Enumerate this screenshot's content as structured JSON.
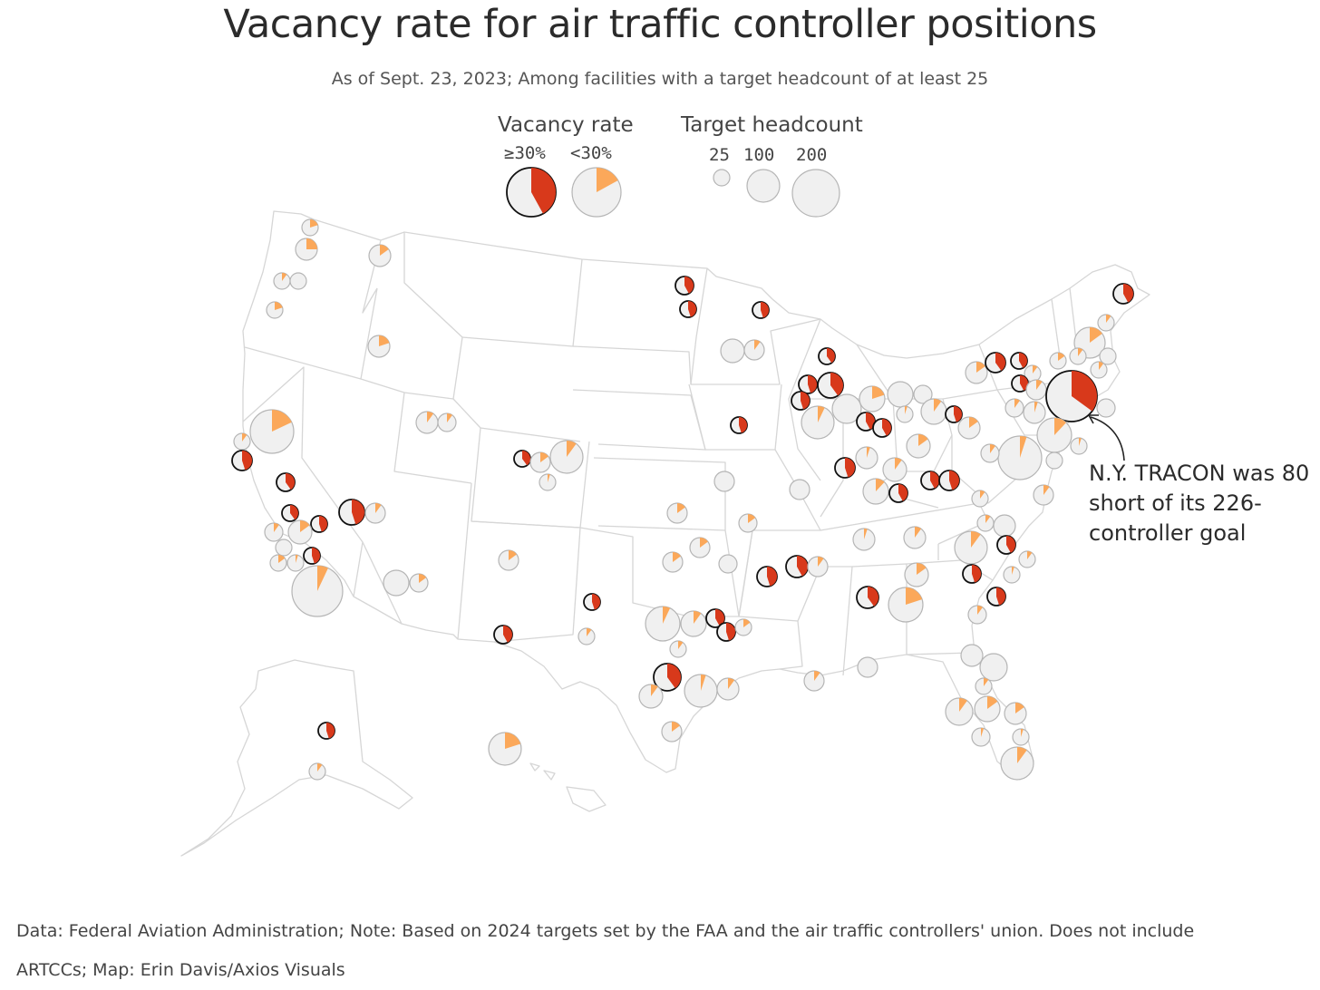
{
  "title": "Vacancy rate for air traffic controller positions",
  "subtitle": "As of Sept. 23, 2023; Among facilities with a target headcount of at least 25",
  "legend": {
    "vacancy_heading": "Vacancy rate",
    "vacancy_high": "≥30%",
    "vacancy_low": "<30%",
    "headcount_heading": "Target headcount",
    "size_25": "25",
    "size_100": "100",
    "size_200": "200"
  },
  "annotation": "N.Y. TRACON was 80 short of its 226-controller goal",
  "footer": {
    "line1": "Data: Federal Aviation Administration; Note: Based on 2024 targets set by the FAA and the air traffic controllers' union. Does not include",
    "line2": "ARTCCs; Map: Erin Davis/Axios Visuals"
  },
  "colors": {
    "high_vacancy": "#d8391b",
    "low_vacancy": "#fba85a",
    "circle_fill": "#f0f0f0",
    "circle_stroke_low": "#b5b5b5",
    "circle_stroke_high": "#111111",
    "state_border": "#d6d6d6"
  }
}
